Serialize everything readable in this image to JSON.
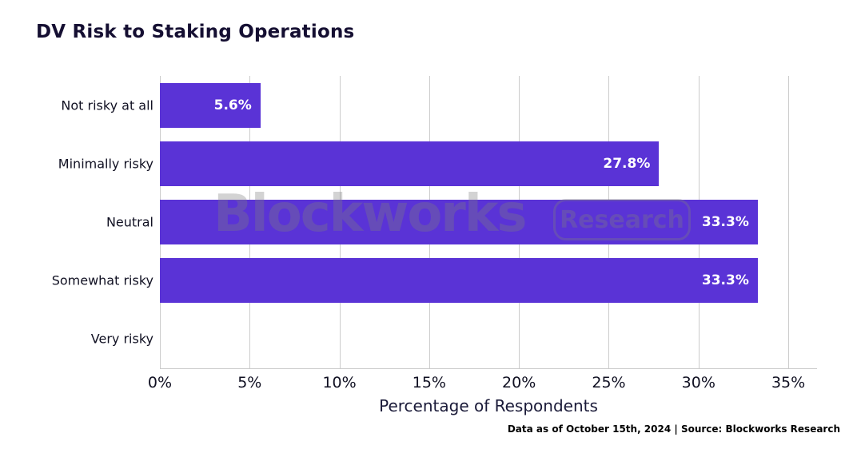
{
  "chart_data": {
    "type": "bar",
    "orientation": "horizontal",
    "title": "DV Risk to Staking Operations",
    "xlabel": "Percentage of Respondents",
    "ylabel": "",
    "categories": [
      "Not risky at all",
      "Minimally risky",
      "Neutral",
      "Somewhat risky",
      "Very risky"
    ],
    "values": [
      5.6,
      27.8,
      33.3,
      33.3,
      0
    ],
    "value_labels": [
      "5.6%",
      "27.8%",
      "33.3%",
      "33.3%",
      ""
    ],
    "xticks": [
      0,
      5,
      10,
      15,
      20,
      25,
      30,
      35
    ],
    "xtick_labels": [
      "0%",
      "5%",
      "10%",
      "15%",
      "20%",
      "25%",
      "30%",
      "35%"
    ],
    "xlim": [
      0,
      36.6
    ],
    "grid": "vertical",
    "legend": "none",
    "bar_color": "#5a33d6",
    "value_label_color": "#ffffff"
  },
  "watermark": {
    "brand": "Blockworks",
    "badge": "Research"
  },
  "footer": {
    "text": "Data as of October 15th, 2024 | Source: Blockworks Research"
  },
  "colors": {
    "bar": "#5a33d6",
    "title_text": "#150f32",
    "axis_text": "#101022",
    "gridline": "#cccccc",
    "axis_line": "#c9c9c9",
    "background": "#ffffff",
    "watermark": "rgba(125,125,125,0.34)"
  }
}
